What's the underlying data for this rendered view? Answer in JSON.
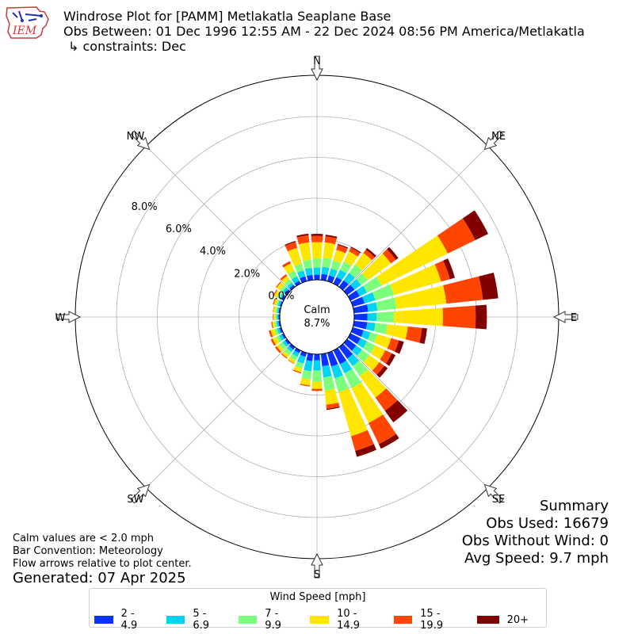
{
  "title": {
    "line1": "Windrose Plot for [PAMM] Metlakatla Seaplane Base",
    "line2": "Obs Between: 01 Dec 1996 12:55 AM - 22 Dec 2024 08:56 PM America/Metlakatla",
    "line3": "↳ constraints: Dec"
  },
  "logo": {
    "text": "IEM"
  },
  "notes": {
    "calm_note": "Calm values are < 2.0 mph",
    "bar_convention": "Bar Convention: Meteorology",
    "flow_arrows": "Flow arrows relative to plot center.",
    "generated": "Generated: 07 Apr 2025"
  },
  "summary": {
    "heading": "Summary",
    "obs_used": "Obs Used: 16679",
    "obs_without_wind": "Obs Without Wind: 0",
    "avg_speed": "Avg Speed: 9.7 mph"
  },
  "chart_data": {
    "type": "windrose",
    "calm_label": "Calm",
    "calm_pct_label": "8.7%",
    "calm_pct": 8.7,
    "directions": [
      "N",
      "NE",
      "E",
      "SE",
      "S",
      "SW",
      "W",
      "NW"
    ],
    "radial_ticks": [
      0.0,
      2.0,
      4.0,
      6.0,
      8.0
    ],
    "radial_tick_labels": [
      "0.0%",
      "2.0%",
      "4.0%",
      "6.0%",
      "8.0%"
    ],
    "legend_title": "Wind Speed [mph]",
    "speed_bins": [
      "2 - 4.9",
      "5 - 6.9",
      "7 - 9.9",
      "10 - 14.9",
      "15 - 19.9",
      "20+"
    ],
    "colors": [
      "#0a32ff",
      "#00d4f2",
      "#7cff7c",
      "#ffe600",
      "#ff4500",
      "#800000"
    ],
    "sector_angles_deg": [
      0,
      10,
      20,
      30,
      40,
      50,
      60,
      70,
      80,
      90,
      100,
      110,
      120,
      130,
      140,
      150,
      160,
      170,
      180,
      190,
      200,
      210,
      220,
      230,
      240,
      250,
      260,
      270,
      280,
      290,
      300,
      310,
      320,
      330,
      340,
      350
    ],
    "sector_values_pct": [
      [
        0.25,
        0.35,
        0.45,
        0.8,
        0.3,
        0.1
      ],
      [
        0.3,
        0.35,
        0.45,
        0.75,
        0.3,
        0.08
      ],
      [
        0.3,
        0.35,
        0.4,
        0.55,
        0.25,
        0.05
      ],
      [
        0.35,
        0.4,
        0.45,
        0.55,
        0.2,
        0.05
      ],
      [
        0.4,
        0.45,
        0.5,
        0.7,
        0.2,
        0.1
      ],
      [
        0.45,
        0.4,
        0.4,
        1.4,
        0.3,
        0.15
      ],
      [
        0.5,
        0.4,
        0.8,
        3.6,
        1.5,
        0.7
      ],
      [
        0.6,
        0.55,
        0.95,
        2.4,
        0.45,
        0.25
      ],
      [
        0.7,
        0.45,
        0.95,
        2.45,
        1.8,
        0.75
      ],
      [
        0.65,
        0.45,
        0.85,
        2.4,
        1.6,
        0.55
      ],
      [
        0.65,
        0.4,
        0.6,
        1.0,
        0.7,
        0.25
      ],
      [
        0.55,
        0.35,
        0.35,
        0.7,
        0.4,
        0.25
      ],
      [
        0.55,
        0.35,
        0.45,
        0.55,
        0.35,
        0.2
      ],
      [
        0.55,
        0.35,
        0.45,
        0.6,
        0.3,
        0.2
      ],
      [
        0.7,
        0.45,
        0.6,
        1.3,
        0.8,
        0.7
      ],
      [
        0.75,
        0.5,
        0.8,
        1.9,
        1.15,
        0.25
      ],
      [
        0.7,
        0.6,
        0.7,
        2.25,
        0.75,
        0.3
      ],
      [
        0.6,
        0.55,
        0.65,
        0.7,
        0.2,
        0.05
      ],
      [
        0.3,
        0.5,
        0.55,
        0.35,
        0.1,
        0.0
      ],
      [
        0.35,
        0.5,
        0.4,
        0.3,
        0.05,
        0.0
      ],
      [
        0.2,
        0.35,
        0.25,
        0.2,
        0.05,
        0.0
      ],
      [
        0.15,
        0.2,
        0.2,
        0.15,
        0.03,
        0.0
      ],
      [
        0.15,
        0.15,
        0.2,
        0.15,
        0.05,
        0.0
      ],
      [
        0.12,
        0.15,
        0.2,
        0.15,
        0.1,
        0.0
      ],
      [
        0.1,
        0.15,
        0.15,
        0.2,
        0.1,
        0.0
      ],
      [
        0.1,
        0.12,
        0.12,
        0.2,
        0.1,
        0.0
      ],
      [
        0.08,
        0.1,
        0.1,
        0.1,
        0.05,
        0.0
      ],
      [
        0.07,
        0.08,
        0.08,
        0.08,
        0.03,
        0.0
      ],
      [
        0.07,
        0.08,
        0.08,
        0.1,
        0.02,
        0.0
      ],
      [
        0.08,
        0.1,
        0.1,
        0.1,
        0.05,
        0.0
      ],
      [
        0.1,
        0.12,
        0.15,
        0.15,
        0.05,
        0.0
      ],
      [
        0.12,
        0.15,
        0.15,
        0.2,
        0.05,
        0.0
      ],
      [
        0.12,
        0.15,
        0.2,
        0.2,
        0.1,
        0.0
      ],
      [
        0.15,
        0.25,
        0.3,
        0.4,
        0.1,
        0.02
      ],
      [
        0.25,
        0.3,
        0.35,
        0.8,
        0.3,
        0.05
      ],
      [
        0.25,
        0.35,
        0.4,
        0.85,
        0.35,
        0.08
      ]
    ]
  }
}
